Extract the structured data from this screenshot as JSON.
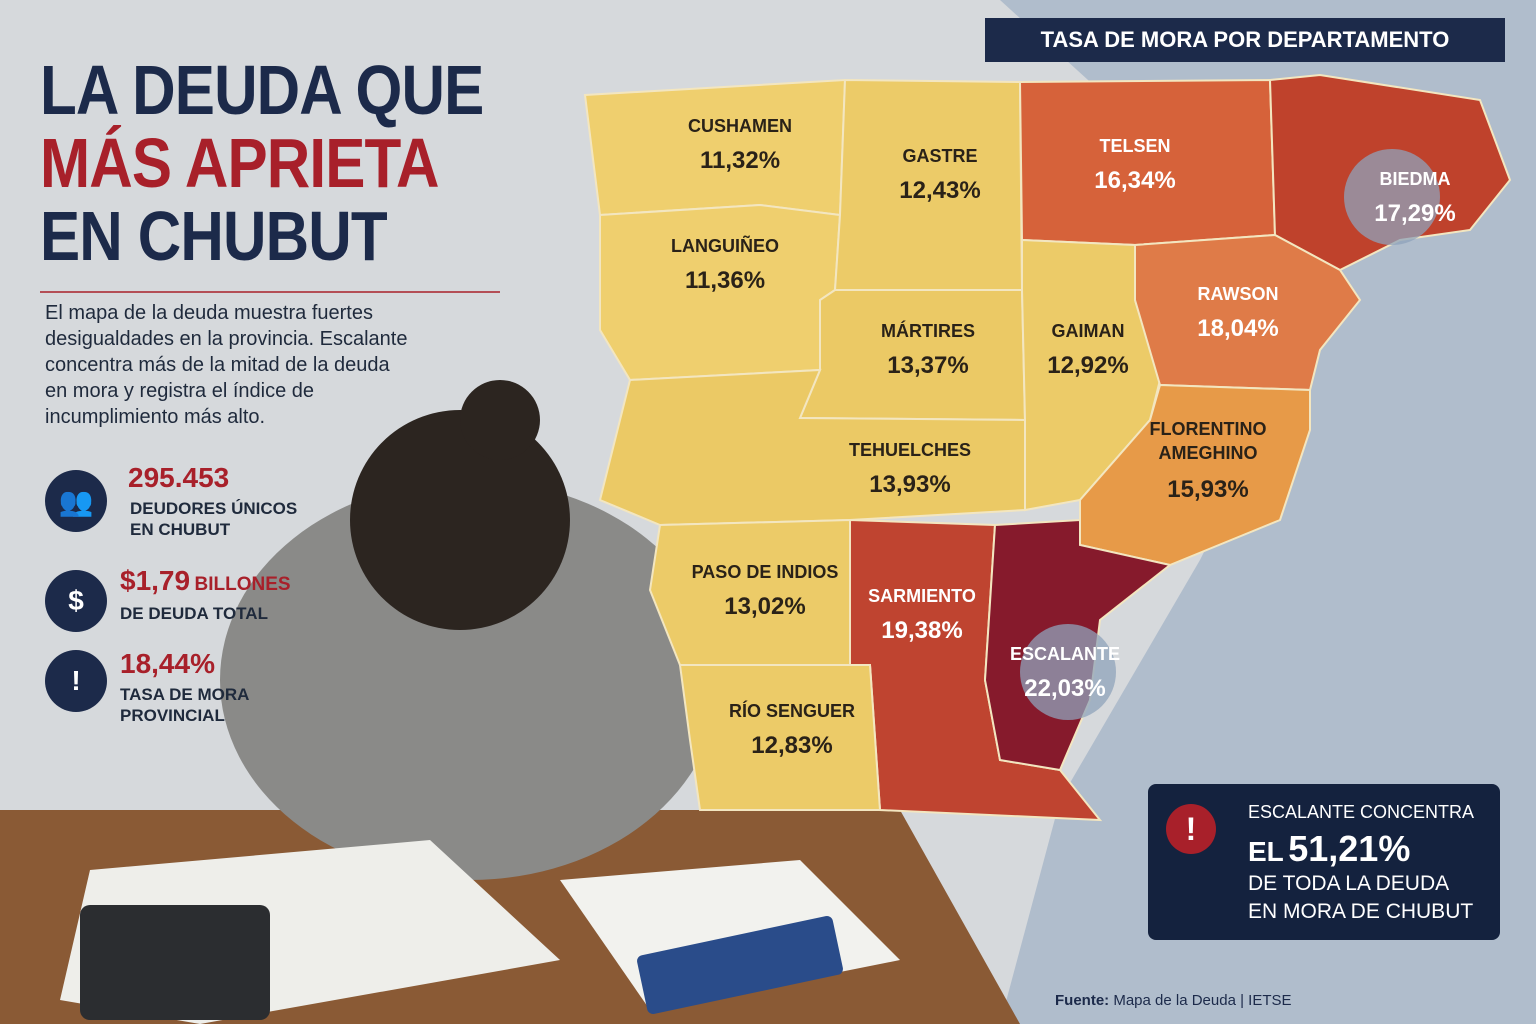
{
  "header": {
    "title_lines": [
      "LA DEUDA QUE",
      "MÁS APRIETA",
      "EN CHUBUT"
    ],
    "intro": "El mapa de la deuda muestra fuertes desigualdades en la provincia. Escalante concentra más de la mitad de la deuda en mora y registra el índice de incumplimiento más alto."
  },
  "stats": [
    {
      "value": "295.453",
      "label_lines": [
        "DEUDORES ÚNICOS",
        "EN CHUBUT"
      ]
    },
    {
      "value": "$1,79",
      "unit": "BILLONES",
      "label_lines": [
        "DE DEUDA TOTAL"
      ]
    },
    {
      "value": "18,44%",
      "label_lines": [
        "TASA DE MORA",
        "PROVINCIAL"
      ]
    }
  ],
  "map": {
    "title": "TASA DE MORA POR DEPARTAMENTO",
    "regions": [
      {
        "name": "CUSHAMEN",
        "rate": "11,32%",
        "color": "#efcf6e"
      },
      {
        "name": "LANGUIÑEO",
        "rate": "11,36%",
        "color": "#efcf6e"
      },
      {
        "name": "GASTRE",
        "rate": "12,43%",
        "color": "#eccb68"
      },
      {
        "name": "TELSEN",
        "rate": "16,34%",
        "color": "#d6623a"
      },
      {
        "name": "BIEDMA",
        "rate": "17,29%",
        "color": "#bf422c"
      },
      {
        "name": "MÁRTIRES",
        "rate": "13,37%",
        "color": "#ebc965"
      },
      {
        "name": "GAIMAN",
        "rate": "12,92%",
        "color": "#eccb68"
      },
      {
        "name": "RAWSON",
        "rate": "18,04%",
        "color": "#df7b48"
      },
      {
        "name": "TEHUELCHES",
        "rate": "13,93%",
        "color": "#ebc965"
      },
      {
        "name": "FLORENTINO AMEGHINO",
        "rate": "15,93%",
        "color": "#e79a48"
      },
      {
        "name": "PASO DE INDIOS",
        "rate": "13,02%",
        "color": "#eccb68"
      },
      {
        "name": "SARMIENTO",
        "rate": "19,38%",
        "color": "#bf4430"
      },
      {
        "name": "ESCALANTE",
        "rate": "22,03%",
        "color": "#861a2c"
      },
      {
        "name": "RÍO SENGUER",
        "rate": "12,83%",
        "color": "#eccb68"
      }
    ]
  },
  "callout": {
    "lines": [
      "ESCALANTE CONCENTRA",
      "EL",
      "51,21%",
      "DE TODA LA DEUDA",
      "EN MORA DE CHUBUT"
    ]
  },
  "source": {
    "label": "Fuente:",
    "text": "Mapa de la Deuda | IETSE"
  }
}
